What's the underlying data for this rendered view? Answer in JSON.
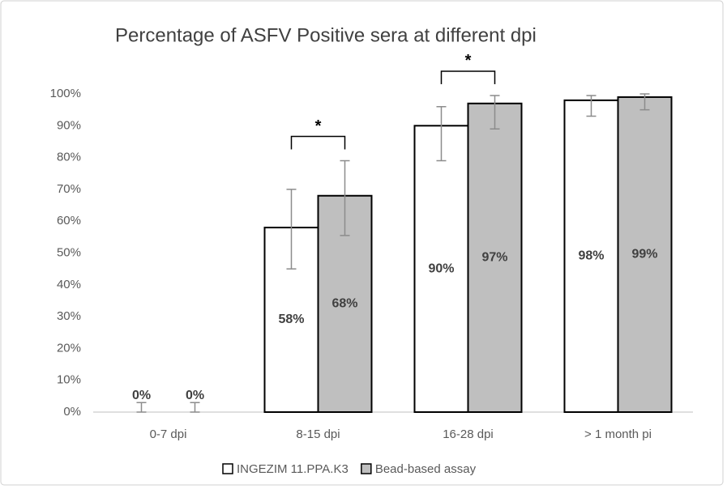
{
  "chart_data": {
    "type": "bar",
    "title": "Percentage of ASFV Positive sera at different dpi",
    "categories": [
      "0-7 dpi",
      "8-15 dpi",
      "16-28 dpi",
      "> 1 month pi"
    ],
    "series": [
      {
        "name": "INGEZIM 11.PPA.K3",
        "color": "#ffffff",
        "values": [
          0,
          58,
          90,
          98
        ],
        "value_labels": [
          "0%",
          "58%",
          "90%",
          "98%"
        ],
        "error_low": [
          0,
          13,
          11,
          5
        ],
        "error_high": [
          3,
          12,
          6,
          1.5
        ]
      },
      {
        "name": "Bead-based assay",
        "color": "#bfbfbf",
        "values": [
          0,
          68,
          97,
          99
        ],
        "value_labels": [
          "0%",
          "68%",
          "97%",
          "99%"
        ],
        "error_low": [
          0,
          12.5,
          8,
          4
        ],
        "error_high": [
          3,
          11,
          2.5,
          1
        ]
      }
    ],
    "annotations": [
      {
        "category": "8-15 dpi",
        "text": "*"
      },
      {
        "category": "16-28 dpi",
        "text": "*"
      }
    ],
    "ylim": [
      0,
      100
    ],
    "yticks": [
      {
        "value": 0,
        "label": "0%"
      },
      {
        "value": 10,
        "label": "10%"
      },
      {
        "value": 20,
        "label": "20%"
      },
      {
        "value": 30,
        "label": "30%"
      },
      {
        "value": 40,
        "label": "40%"
      },
      {
        "value": 50,
        "label": "50%"
      },
      {
        "value": 60,
        "label": "60%"
      },
      {
        "value": 70,
        "label": "70%"
      },
      {
        "value": 80,
        "label": "80%"
      },
      {
        "value": 90,
        "label": "90%"
      },
      {
        "value": 100,
        "label": "100%"
      }
    ],
    "grid": false
  }
}
